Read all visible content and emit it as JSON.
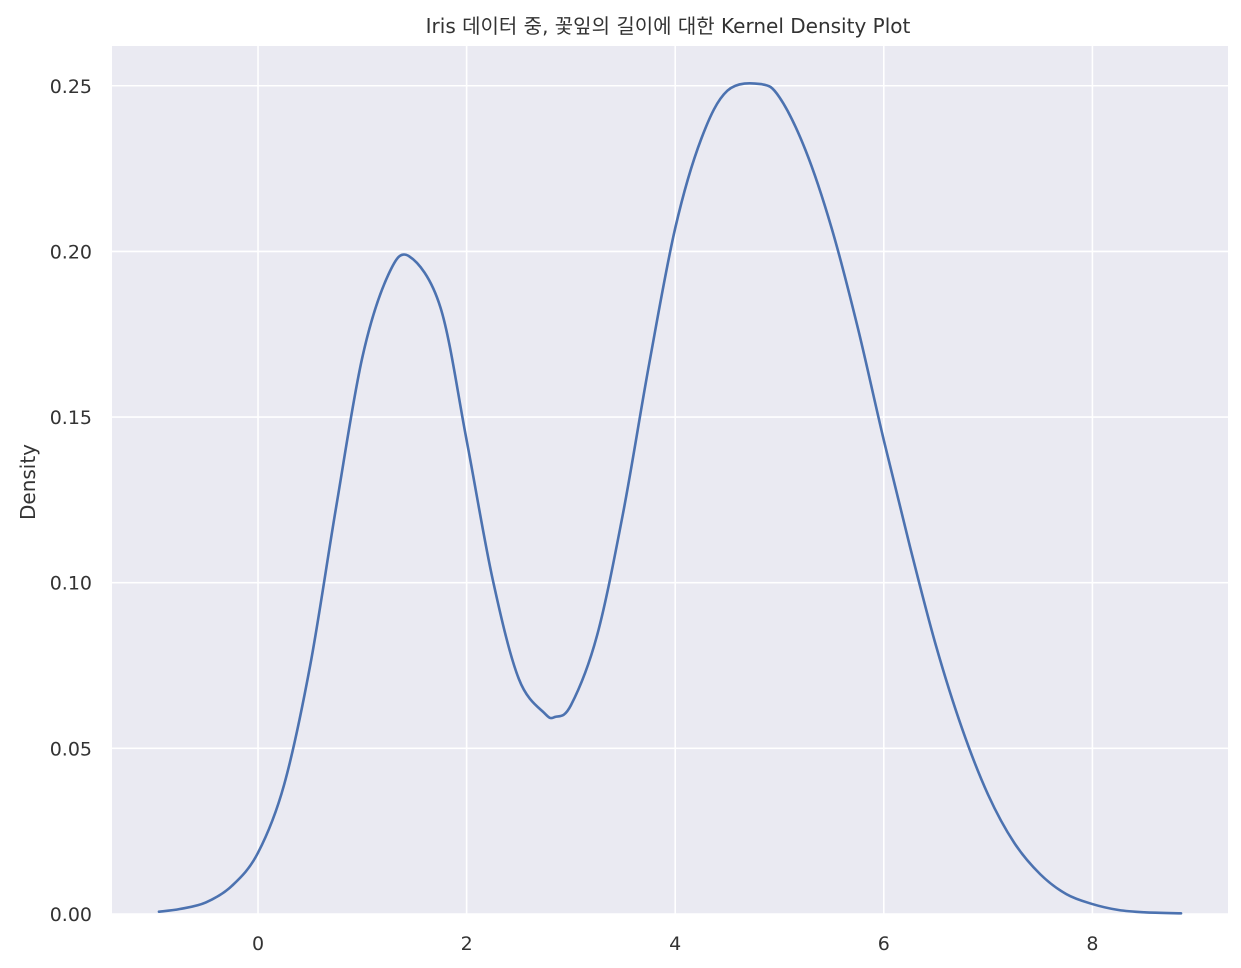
{
  "chart_data": {
    "type": "line",
    "title": "Iris 데이터 중, 꽃잎의 길이에 대한 Kernel Density Plot",
    "xlabel": "",
    "ylabel": "Density",
    "xlim": [
      -1.4,
      9.3
    ],
    "ylim": [
      0.0,
      0.262
    ],
    "x_ticks": [
      0,
      2,
      4,
      6,
      8
    ],
    "y_ticks": [
      "0.00",
      "0.05",
      "0.10",
      "0.15",
      "0.20",
      "0.25"
    ],
    "grid": true,
    "legend": "none",
    "colors": {
      "background": "#eaeaf2",
      "grid": "#ffffff",
      "line": "#4c72b0"
    },
    "series": [
      {
        "x": [
          -0.95,
          -0.75,
          -0.5,
          -0.25,
          0,
          0.25,
          0.5,
          0.75,
          1.0,
          1.25,
          1.45,
          1.75,
          2.0,
          2.25,
          2.5,
          2.75,
          2.85,
          3.0,
          3.25,
          3.5,
          3.75,
          4.0,
          4.25,
          4.5,
          4.82,
          5.0,
          5.25,
          5.5,
          5.75,
          6.0,
          6.25,
          6.5,
          6.75,
          7.0,
          7.25,
          7.5,
          7.75,
          8.0,
          8.25,
          8.5,
          8.85
        ],
        "y": [
          0.0007,
          0.0015,
          0.0035,
          0.0085,
          0.0185,
          0.039,
          0.075,
          0.123,
          0.168,
          0.193,
          0.1985,
          0.183,
          0.143,
          0.101,
          0.071,
          0.0605,
          0.0595,
          0.063,
          0.084,
          0.121,
          0.166,
          0.207,
          0.234,
          0.2485,
          0.2505,
          0.2465,
          0.2305,
          0.207,
          0.177,
          0.143,
          0.111,
          0.081,
          0.056,
          0.036,
          0.0215,
          0.012,
          0.006,
          0.003,
          0.0012,
          0.0005,
          0.0002
        ]
      }
    ]
  }
}
